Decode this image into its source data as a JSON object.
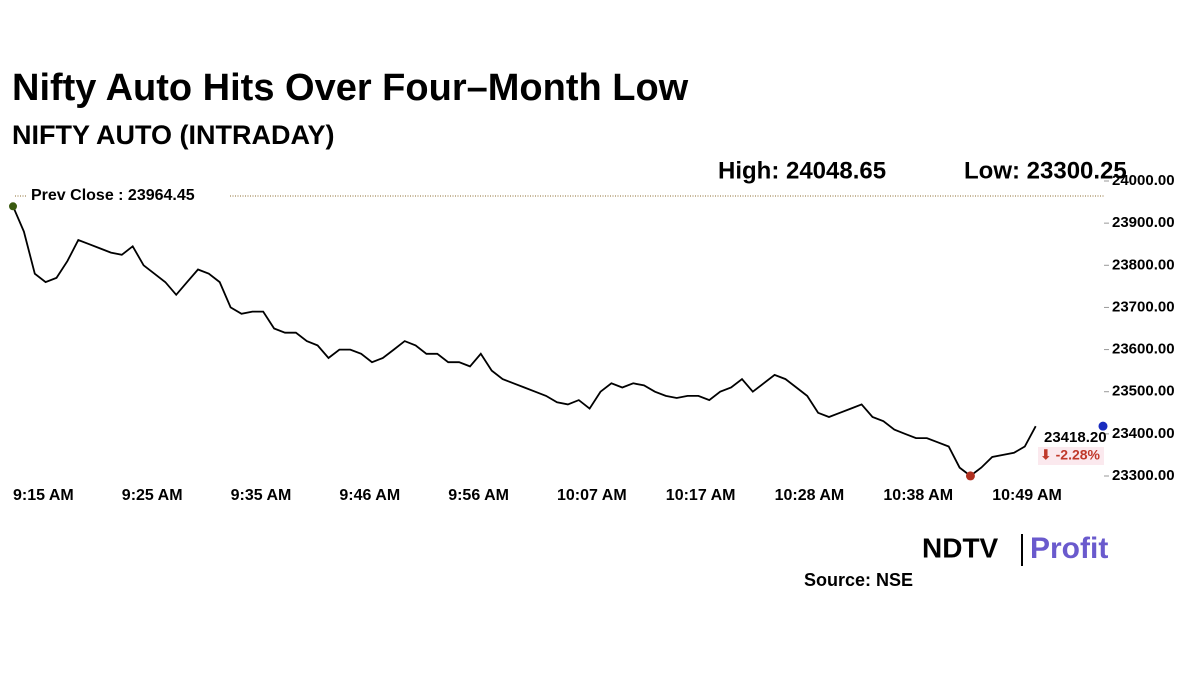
{
  "chart_data": {
    "type": "line",
    "title": "Nifty Auto Hits Over Four–Month Low",
    "subtitle": "NIFTY AUTO (INTRADAY)",
    "high_label": "High: 24048.65",
    "low_label": "Low: 23300.25",
    "prev_close_label": "Prev Close : 23964.45",
    "prev_close": 23964.45,
    "last_label": "23418.20",
    "change_label": "⬇ -2.28%",
    "source": "Source: NSE",
    "logo": [
      "NDTV",
      "Profit"
    ],
    "color": "#000000",
    "categories": [
      "9:15 AM",
      null,
      null,
      null,
      null,
      null,
      null,
      null,
      null,
      null,
      "9:25 AM",
      null,
      null,
      null,
      null,
      null,
      null,
      null,
      null,
      null,
      "9:35 AM",
      null,
      null,
      null,
      null,
      null,
      null,
      null,
      null,
      null,
      "9:46 AM",
      null,
      null,
      null,
      null,
      null,
      null,
      null,
      null,
      null,
      "9:56 AM",
      null,
      null,
      null,
      null,
      null,
      null,
      null,
      null,
      null,
      "10:07 AM",
      null,
      null,
      null,
      null,
      null,
      null,
      null,
      null,
      null,
      "10:17 AM",
      null,
      null,
      null,
      null,
      null,
      null,
      null,
      null,
      null,
      "10:28 AM",
      null,
      null,
      null,
      null,
      null,
      null,
      null,
      null,
      null,
      "10:38 AM",
      null,
      null,
      null,
      null,
      null,
      null,
      null,
      null,
      null,
      "10:49 AM",
      null,
      null,
      null,
      null
    ],
    "values": [
      23940,
      23880,
      23780,
      23760,
      23770,
      23810,
      23860,
      23850,
      23840,
      23830,
      23825,
      23845,
      23800,
      23780,
      23760,
      23730,
      23760,
      23790,
      23780,
      23760,
      23700,
      23685,
      23690,
      23690,
      23650,
      23640,
      23640,
      23620,
      23610,
      23580,
      23600,
      23600,
      23590,
      23570,
      23580,
      23600,
      23620,
      23610,
      23590,
      23590,
      23570,
      23570,
      23560,
      23590,
      23550,
      23530,
      23520,
      23510,
      23500,
      23490,
      23475,
      23470,
      23480,
      23460,
      23500,
      23520,
      23510,
      23520,
      23515,
      23500,
      23490,
      23485,
      23490,
      23490,
      23480,
      23500,
      23510,
      23530,
      23500,
      23520,
      23540,
      23530,
      23510,
      23490,
      23450,
      23440,
      23450,
      23460,
      23470,
      23440,
      23430,
      23410,
      23400,
      23390,
      23390,
      23380,
      23370,
      23320,
      23300.25,
      23320,
      23345,
      23350,
      23355,
      23370,
      23418.2
    ],
    "ylim": [
      23300,
      24000
    ],
    "yticks": [
      {
        "value": 23300,
        "label": "23300.00"
      },
      {
        "value": 23400,
        "label": "23400.00"
      },
      {
        "value": 23500,
        "label": "23500.00"
      },
      {
        "value": 23600,
        "label": "23600.00"
      },
      {
        "value": 23700,
        "label": "23700.00"
      },
      {
        "value": 23800,
        "label": "23800.00"
      },
      {
        "value": 23900,
        "label": "23900.00"
      },
      {
        "value": 24000,
        "label": "24000.00"
      }
    ]
  }
}
